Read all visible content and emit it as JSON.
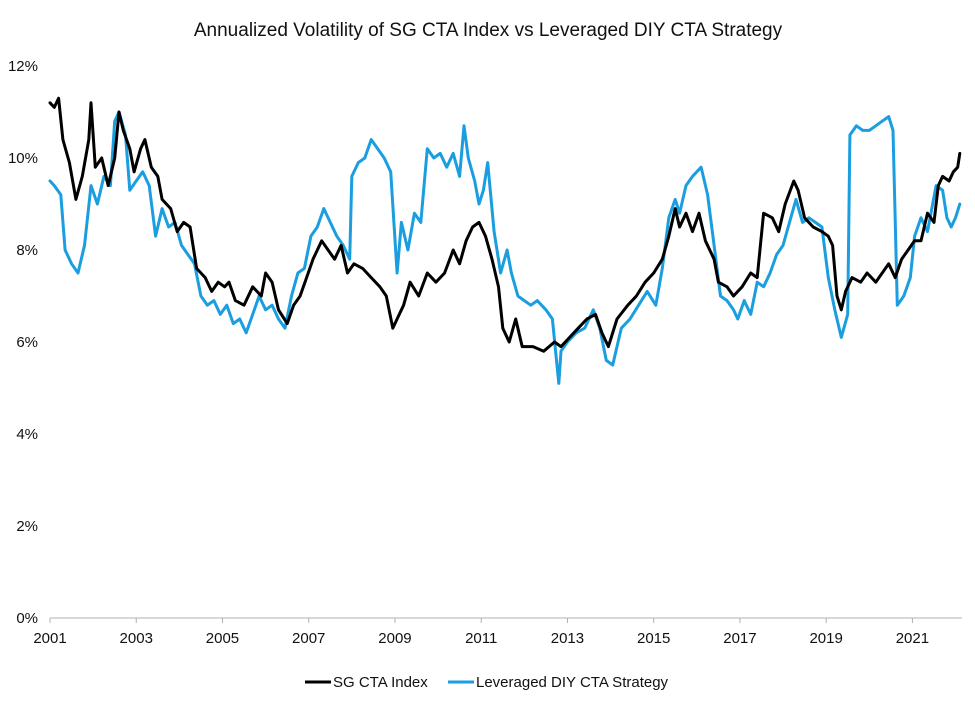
{
  "chart_data": {
    "type": "line",
    "title": "Annualized Volatility of SG CTA Index vs Leveraged DIY CTA Strategy",
    "xlabel": "",
    "ylabel": "",
    "xlim": [
      2001,
      2022.15
    ],
    "ylim": [
      0,
      12
    ],
    "y_ticks": [
      0,
      2,
      4,
      6,
      8,
      10,
      12
    ],
    "y_tick_labels": [
      "0%",
      "2%",
      "4%",
      "6%",
      "8%",
      "10%",
      "12%"
    ],
    "x_ticks": [
      2001,
      2003,
      2005,
      2007,
      2009,
      2011,
      2013,
      2015,
      2017,
      2019,
      2021
    ],
    "x_tick_labels": [
      "2001",
      "2003",
      "2005",
      "2007",
      "2009",
      "2011",
      "2013",
      "2015",
      "2017",
      "2019",
      "2021"
    ],
    "grid": false,
    "legend_position": "bottom-center",
    "series": [
      {
        "name": "SG CTA Index",
        "color": "#000000",
        "points": [
          [
            2001.0,
            11.2
          ],
          [
            2001.1,
            11.1
          ],
          [
            2001.2,
            11.3
          ],
          [
            2001.3,
            10.4
          ],
          [
            2001.45,
            9.9
          ],
          [
            2001.6,
            9.1
          ],
          [
            2001.75,
            9.6
          ],
          [
            2001.9,
            10.4
          ],
          [
            2001.95,
            11.2
          ],
          [
            2002.05,
            9.8
          ],
          [
            2002.2,
            10.0
          ],
          [
            2002.35,
            9.4
          ],
          [
            2002.5,
            10.0
          ],
          [
            2002.6,
            11.0
          ],
          [
            2002.7,
            10.6
          ],
          [
            2002.85,
            10.2
          ],
          [
            2002.95,
            9.7
          ],
          [
            2003.1,
            10.2
          ],
          [
            2003.2,
            10.4
          ],
          [
            2003.35,
            9.8
          ],
          [
            2003.5,
            9.6
          ],
          [
            2003.6,
            9.1
          ],
          [
            2003.8,
            8.9
          ],
          [
            2003.95,
            8.4
          ],
          [
            2004.1,
            8.6
          ],
          [
            2004.25,
            8.5
          ],
          [
            2004.4,
            7.6
          ],
          [
            2004.6,
            7.4
          ],
          [
            2004.75,
            7.1
          ],
          [
            2004.9,
            7.3
          ],
          [
            2005.05,
            7.2
          ],
          [
            2005.15,
            7.3
          ],
          [
            2005.3,
            6.9
          ],
          [
            2005.5,
            6.8
          ],
          [
            2005.7,
            7.2
          ],
          [
            2005.9,
            7.0
          ],
          [
            2006.0,
            7.5
          ],
          [
            2006.15,
            7.3
          ],
          [
            2006.3,
            6.7
          ],
          [
            2006.5,
            6.4
          ],
          [
            2006.65,
            6.8
          ],
          [
            2006.8,
            7.0
          ],
          [
            2006.95,
            7.4
          ],
          [
            2007.1,
            7.8
          ],
          [
            2007.3,
            8.2
          ],
          [
            2007.45,
            8.0
          ],
          [
            2007.6,
            7.8
          ],
          [
            2007.75,
            8.1
          ],
          [
            2007.9,
            7.5
          ],
          [
            2008.05,
            7.7
          ],
          [
            2008.25,
            7.6
          ],
          [
            2008.45,
            7.4
          ],
          [
            2008.65,
            7.2
          ],
          [
            2008.8,
            7.0
          ],
          [
            2008.95,
            6.3
          ],
          [
            2009.05,
            6.5
          ],
          [
            2009.2,
            6.8
          ],
          [
            2009.35,
            7.3
          ],
          [
            2009.55,
            7.0
          ],
          [
            2009.75,
            7.5
          ],
          [
            2009.95,
            7.3
          ],
          [
            2010.15,
            7.5
          ],
          [
            2010.35,
            8.0
          ],
          [
            2010.5,
            7.7
          ],
          [
            2010.65,
            8.2
          ],
          [
            2010.8,
            8.5
          ],
          [
            2010.95,
            8.6
          ],
          [
            2011.1,
            8.3
          ],
          [
            2011.25,
            7.8
          ],
          [
            2011.4,
            7.2
          ],
          [
            2011.5,
            6.3
          ],
          [
            2011.65,
            6.0
          ],
          [
            2011.8,
            6.5
          ],
          [
            2011.95,
            5.9
          ],
          [
            2012.2,
            5.9
          ],
          [
            2012.45,
            5.8
          ],
          [
            2012.7,
            6.0
          ],
          [
            2012.85,
            5.9
          ],
          [
            2013.05,
            6.1
          ],
          [
            2013.25,
            6.3
          ],
          [
            2013.45,
            6.5
          ],
          [
            2013.65,
            6.6
          ],
          [
            2013.8,
            6.2
          ],
          [
            2013.95,
            5.9
          ],
          [
            2014.15,
            6.5
          ],
          [
            2014.4,
            6.8
          ],
          [
            2014.6,
            7.0
          ],
          [
            2014.8,
            7.3
          ],
          [
            2015.0,
            7.5
          ],
          [
            2015.2,
            7.8
          ],
          [
            2015.35,
            8.3
          ],
          [
            2015.5,
            8.9
          ],
          [
            2015.6,
            8.5
          ],
          [
            2015.75,
            8.8
          ],
          [
            2015.9,
            8.4
          ],
          [
            2016.05,
            8.8
          ],
          [
            2016.2,
            8.2
          ],
          [
            2016.4,
            7.8
          ],
          [
            2016.5,
            7.3
          ],
          [
            2016.7,
            7.2
          ],
          [
            2016.85,
            7.0
          ],
          [
            2017.05,
            7.2
          ],
          [
            2017.25,
            7.5
          ],
          [
            2017.4,
            7.4
          ],
          [
            2017.55,
            8.8
          ],
          [
            2017.75,
            8.7
          ],
          [
            2017.9,
            8.4
          ],
          [
            2018.05,
            9.0
          ],
          [
            2018.25,
            9.5
          ],
          [
            2018.35,
            9.3
          ],
          [
            2018.5,
            8.7
          ],
          [
            2018.7,
            8.5
          ],
          [
            2018.9,
            8.4
          ],
          [
            2019.05,
            8.3
          ],
          [
            2019.15,
            8.1
          ],
          [
            2019.25,
            7.0
          ],
          [
            2019.35,
            6.7
          ],
          [
            2019.45,
            7.1
          ],
          [
            2019.6,
            7.4
          ],
          [
            2019.8,
            7.3
          ],
          [
            2019.95,
            7.5
          ],
          [
            2020.15,
            7.3
          ],
          [
            2020.3,
            7.5
          ],
          [
            2020.45,
            7.7
          ],
          [
            2020.6,
            7.4
          ],
          [
            2020.75,
            7.8
          ],
          [
            2020.9,
            8.0
          ],
          [
            2021.05,
            8.2
          ],
          [
            2021.2,
            8.2
          ],
          [
            2021.35,
            8.8
          ],
          [
            2021.5,
            8.6
          ],
          [
            2021.6,
            9.4
          ],
          [
            2021.7,
            9.6
          ],
          [
            2021.85,
            9.5
          ],
          [
            2021.95,
            9.7
          ],
          [
            2022.05,
            9.8
          ],
          [
            2022.1,
            10.1
          ]
        ]
      },
      {
        "name": "Leveraged DIY CTA Strategy",
        "color": "#1a9ee0",
        "points": [
          [
            2001.0,
            9.5
          ],
          [
            2001.1,
            9.4
          ],
          [
            2001.25,
            9.2
          ],
          [
            2001.35,
            8.0
          ],
          [
            2001.5,
            7.7
          ],
          [
            2001.65,
            7.5
          ],
          [
            2001.8,
            8.1
          ],
          [
            2001.95,
            9.4
          ],
          [
            2002.1,
            9.0
          ],
          [
            2002.25,
            9.6
          ],
          [
            2002.4,
            9.4
          ],
          [
            2002.5,
            10.8
          ],
          [
            2002.6,
            11.0
          ],
          [
            2002.75,
            10.5
          ],
          [
            2002.85,
            9.3
          ],
          [
            2003.0,
            9.5
          ],
          [
            2003.15,
            9.7
          ],
          [
            2003.3,
            9.4
          ],
          [
            2003.45,
            8.3
          ],
          [
            2003.6,
            8.9
          ],
          [
            2003.75,
            8.5
          ],
          [
            2003.9,
            8.6
          ],
          [
            2004.05,
            8.1
          ],
          [
            2004.2,
            7.9
          ],
          [
            2004.35,
            7.7
          ],
          [
            2004.5,
            7.0
          ],
          [
            2004.65,
            6.8
          ],
          [
            2004.8,
            6.9
          ],
          [
            2004.95,
            6.6
          ],
          [
            2005.1,
            6.8
          ],
          [
            2005.25,
            6.4
          ],
          [
            2005.4,
            6.5
          ],
          [
            2005.55,
            6.2
          ],
          [
            2005.7,
            6.6
          ],
          [
            2005.85,
            7.0
          ],
          [
            2006.0,
            6.7
          ],
          [
            2006.15,
            6.8
          ],
          [
            2006.3,
            6.5
          ],
          [
            2006.45,
            6.3
          ],
          [
            2006.6,
            7.0
          ],
          [
            2006.75,
            7.5
          ],
          [
            2006.9,
            7.6
          ],
          [
            2007.05,
            8.3
          ],
          [
            2007.2,
            8.5
          ],
          [
            2007.35,
            8.9
          ],
          [
            2007.5,
            8.6
          ],
          [
            2007.65,
            8.3
          ],
          [
            2007.8,
            8.1
          ],
          [
            2007.95,
            7.8
          ],
          [
            2008.0,
            9.6
          ],
          [
            2008.15,
            9.9
          ],
          [
            2008.3,
            10.0
          ],
          [
            2008.45,
            10.4
          ],
          [
            2008.6,
            10.2
          ],
          [
            2008.75,
            10.0
          ],
          [
            2008.9,
            9.7
          ],
          [
            2009.05,
            7.5
          ],
          [
            2009.15,
            8.6
          ],
          [
            2009.3,
            8.0
          ],
          [
            2009.45,
            8.8
          ],
          [
            2009.6,
            8.6
          ],
          [
            2009.75,
            10.2
          ],
          [
            2009.9,
            10.0
          ],
          [
            2010.05,
            10.1
          ],
          [
            2010.2,
            9.8
          ],
          [
            2010.35,
            10.1
          ],
          [
            2010.5,
            9.6
          ],
          [
            2010.6,
            10.7
          ],
          [
            2010.7,
            10.0
          ],
          [
            2010.85,
            9.5
          ],
          [
            2010.95,
            9.0
          ],
          [
            2011.05,
            9.3
          ],
          [
            2011.15,
            9.9
          ],
          [
            2011.3,
            8.4
          ],
          [
            2011.45,
            7.5
          ],
          [
            2011.6,
            8.0
          ],
          [
            2011.7,
            7.5
          ],
          [
            2011.85,
            7.0
          ],
          [
            2012.0,
            6.9
          ],
          [
            2012.15,
            6.8
          ],
          [
            2012.3,
            6.9
          ],
          [
            2012.5,
            6.7
          ],
          [
            2012.65,
            6.5
          ],
          [
            2012.8,
            5.1
          ],
          [
            2012.85,
            5.8
          ],
          [
            2013.0,
            6.0
          ],
          [
            2013.2,
            6.2
          ],
          [
            2013.4,
            6.3
          ],
          [
            2013.6,
            6.7
          ],
          [
            2013.75,
            6.3
          ],
          [
            2013.9,
            5.6
          ],
          [
            2014.05,
            5.5
          ],
          [
            2014.25,
            6.3
          ],
          [
            2014.45,
            6.5
          ],
          [
            2014.65,
            6.8
          ],
          [
            2014.85,
            7.1
          ],
          [
            2015.05,
            6.8
          ],
          [
            2015.2,
            7.6
          ],
          [
            2015.35,
            8.7
          ],
          [
            2015.5,
            9.1
          ],
          [
            2015.6,
            8.8
          ],
          [
            2015.75,
            9.4
          ],
          [
            2015.9,
            9.6
          ],
          [
            2016.0,
            9.7
          ],
          [
            2016.1,
            9.8
          ],
          [
            2016.25,
            9.2
          ],
          [
            2016.4,
            8.1
          ],
          [
            2016.55,
            7.0
          ],
          [
            2016.7,
            6.9
          ],
          [
            2016.85,
            6.7
          ],
          [
            2016.95,
            6.5
          ],
          [
            2017.1,
            6.9
          ],
          [
            2017.25,
            6.6
          ],
          [
            2017.4,
            7.3
          ],
          [
            2017.55,
            7.2
          ],
          [
            2017.7,
            7.5
          ],
          [
            2017.85,
            7.9
          ],
          [
            2018.0,
            8.1
          ],
          [
            2018.15,
            8.6
          ],
          [
            2018.3,
            9.1
          ],
          [
            2018.45,
            8.6
          ],
          [
            2018.6,
            8.7
          ],
          [
            2018.75,
            8.6
          ],
          [
            2018.9,
            8.5
          ],
          [
            2019.05,
            7.4
          ],
          [
            2019.2,
            6.7
          ],
          [
            2019.35,
            6.1
          ],
          [
            2019.5,
            6.6
          ],
          [
            2019.55,
            10.5
          ],
          [
            2019.7,
            10.7
          ],
          [
            2019.85,
            10.6
          ],
          [
            2020.0,
            10.6
          ],
          [
            2020.15,
            10.7
          ],
          [
            2020.3,
            10.8
          ],
          [
            2020.45,
            10.9
          ],
          [
            2020.55,
            10.6
          ],
          [
            2020.65,
            6.8
          ],
          [
            2020.8,
            7.0
          ],
          [
            2020.95,
            7.4
          ],
          [
            2021.05,
            8.3
          ],
          [
            2021.2,
            8.7
          ],
          [
            2021.35,
            8.4
          ],
          [
            2021.45,
            8.9
          ],
          [
            2021.55,
            9.4
          ],
          [
            2021.7,
            9.3
          ],
          [
            2021.8,
            8.7
          ],
          [
            2021.9,
            8.5
          ],
          [
            2022.0,
            8.7
          ],
          [
            2022.1,
            9.0
          ]
        ]
      }
    ]
  }
}
